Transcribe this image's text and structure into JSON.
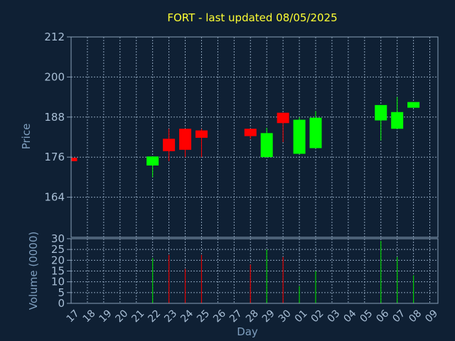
{
  "chart_data": {
    "type": "candlestick",
    "title": "FORT - last updated 08/05/2025",
    "xlabel": "Day",
    "categories": [
      "17",
      "18",
      "19",
      "20",
      "21",
      "22",
      "23",
      "24",
      "25",
      "26",
      "27",
      "28",
      "29",
      "30",
      "01",
      "02",
      "03",
      "04",
      "05",
      "06",
      "07",
      "08",
      "09"
    ],
    "price_panel": {
      "ylabel": "Price",
      "ylim": [
        152,
        212
      ],
      "yticks": [
        212,
        200,
        188,
        176,
        164
      ],
      "grid": true,
      "candles": [
        {
          "day": "17",
          "open": 175.8,
          "close": 174.8,
          "high": 175.8,
          "low": 174.8
        },
        {
          "day": "22",
          "open": 173.5,
          "close": 176.2,
          "high": 176.2,
          "low": 170.0
        },
        {
          "day": "23",
          "open": 181.5,
          "close": 177.8,
          "high": 184.5,
          "low": 174.8
        },
        {
          "day": "24",
          "open": 184.5,
          "close": 178.2,
          "high": 184.5,
          "low": 176.0
        },
        {
          "day": "25",
          "open": 184.0,
          "close": 181.8,
          "high": 184.5,
          "low": 176.0
        },
        {
          "day": "28",
          "open": 184.5,
          "close": 182.3,
          "high": 184.5,
          "low": 181.5
        },
        {
          "day": "29",
          "open": 176.0,
          "close": 183.2,
          "high": 184.8,
          "low": 176.0
        },
        {
          "day": "30",
          "open": 189.3,
          "close": 186.2,
          "high": 189.3,
          "low": 180.5
        },
        {
          "day": "01",
          "open": 177.0,
          "close": 187.2,
          "high": 188.0,
          "low": 177.0
        },
        {
          "day": "02",
          "open": 178.7,
          "close": 187.8,
          "high": 189.8,
          "low": 178.7
        },
        {
          "day": "06",
          "open": 187.0,
          "close": 191.6,
          "high": 191.6,
          "low": 181.0
        },
        {
          "day": "07",
          "open": 184.5,
          "close": 189.5,
          "high": 194.0,
          "low": 184.5
        },
        {
          "day": "08",
          "open": 190.8,
          "close": 192.5,
          "high": 192.5,
          "low": 190.8
        }
      ]
    },
    "volume_panel": {
      "ylabel": "Volume (0000)",
      "ylim": [
        0,
        30
      ],
      "yticks": [
        30,
        25,
        20,
        15,
        10,
        5,
        0
      ],
      "grid": true,
      "bars": [
        {
          "day": "22",
          "value": 21
        },
        {
          "day": "23",
          "value": 22.5
        },
        {
          "day": "24",
          "value": 16
        },
        {
          "day": "25",
          "value": 22.5
        },
        {
          "day": "28",
          "value": 18
        },
        {
          "day": "29",
          "value": 25
        },
        {
          "day": "30",
          "value": 21.5
        },
        {
          "day": "01",
          "value": 8
        },
        {
          "day": "02",
          "value": 15
        },
        {
          "day": "06",
          "value": 29
        },
        {
          "day": "07",
          "value": 21.5
        },
        {
          "day": "08",
          "value": 13
        }
      ]
    },
    "colors": {
      "background": "#0f2034",
      "up": "#00ff00",
      "down": "#ff0000",
      "up_volume": "#00cc00",
      "down_volume": "#dd0000",
      "title": "#ffff33",
      "axis_label": "#7f9fbf",
      "tick_label": "#a9bfd6",
      "grid": "#8aa0b8"
    }
  }
}
